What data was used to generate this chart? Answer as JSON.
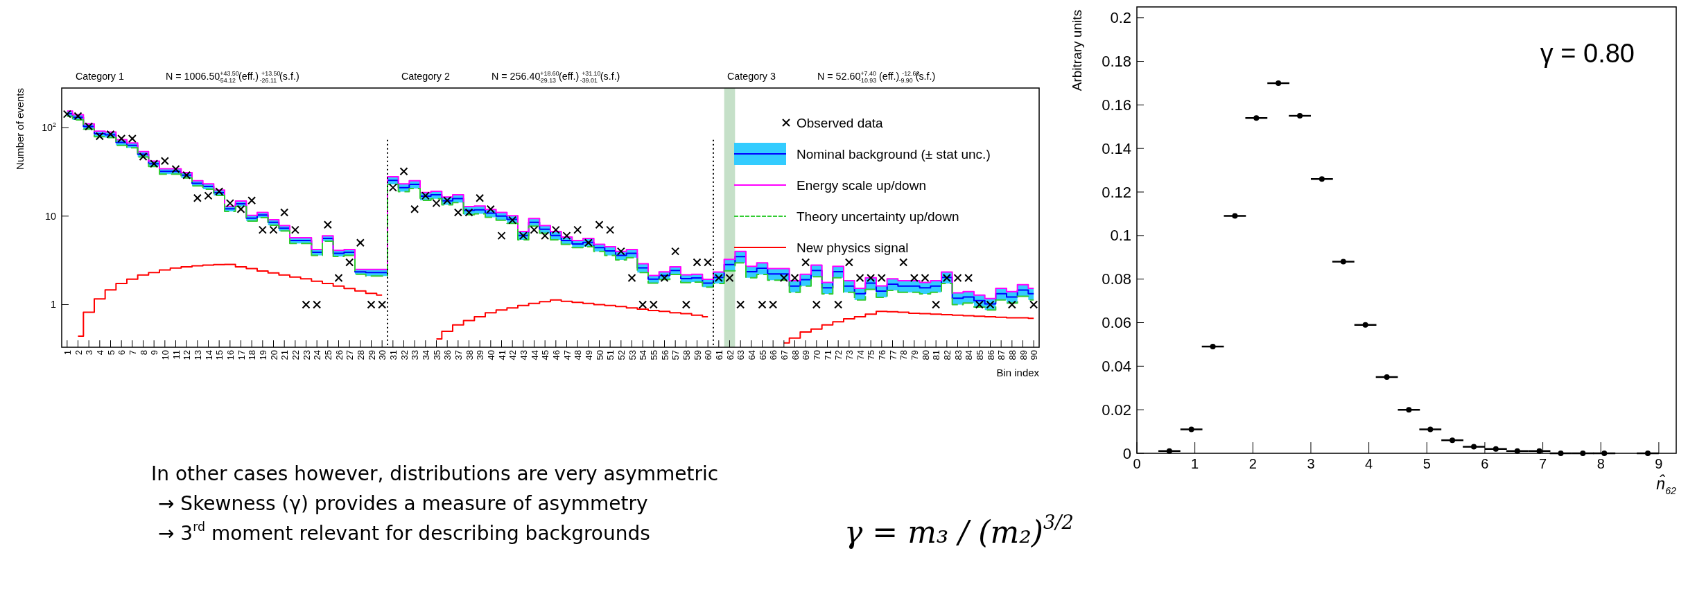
{
  "chart_data": [
    {
      "type": "step",
      "xlabel": "Bin index",
      "ylabel": "Number of events",
      "log": "y",
      "legend": "top right",
      "annotations": [
        "Category 1",
        "N = 1006.50$^{+43.50}$$_{-54.12}$ (eff.) $^{+13.50}$$_{-26.11}$ (s.f.)",
        "Category 2",
        "N = 256.40$^{+18.60}$$_{-29.13}$ (eff.) $^{+31.10}$$_{-39.01}$ (s.f.)",
        "Category 3",
        "N = 52.60$^{+7.40}$$_{-10.93}$ (eff.) $^{-12.60}$$_{-9.90}$ (s.f.)"
      ],
      "x": [
        1,
        2,
        3,
        4,
        5,
        6,
        7,
        8,
        9,
        10,
        11,
        12,
        13,
        14,
        15,
        16,
        17,
        18,
        19,
        20,
        21,
        22,
        23,
        24,
        25,
        26,
        27,
        28,
        29,
        30,
        31,
        32,
        33,
        34,
        35,
        36,
        37,
        38,
        39,
        40,
        41,
        42,
        43,
        44,
        45,
        46,
        47,
        48,
        49,
        50,
        51,
        52,
        53,
        54,
        55,
        56,
        57,
        58,
        59,
        60,
        61,
        62,
        63,
        64,
        65,
        66,
        67,
        68,
        69,
        70,
        71,
        72,
        73,
        74,
        75,
        76,
        77,
        78,
        79,
        80,
        81,
        82,
        83,
        84,
        85,
        86,
        87,
        88,
        89,
        90
      ],
      "xlim": [
        0.5,
        90.5
      ],
      "xticks": [
        1,
        2,
        3,
        4,
        5,
        6,
        7,
        8,
        9,
        10,
        11,
        12,
        13,
        14,
        15,
        16,
        17,
        18,
        19,
        20,
        21,
        22,
        23,
        24,
        25,
        26,
        27,
        28,
        29,
        30,
        31,
        32,
        33,
        34,
        35,
        36,
        37,
        38,
        39,
        40,
        41,
        42,
        43,
        44,
        45,
        46,
        47,
        48,
        49,
        50,
        51,
        52,
        53,
        54,
        55,
        56,
        57,
        58,
        59,
        60,
        61,
        62,
        63,
        64,
        65,
        66,
        67,
        68,
        69,
        70,
        71,
        72,
        73,
        74,
        75,
        76,
        77,
        78,
        79,
        80,
        81,
        82,
        83,
        84,
        85,
        86,
        87,
        88,
        89,
        90
      ],
      "ylim": [
        0.33,
        280
      ],
      "yticks": [
        1,
        10,
        {
          "value": 100,
          "label": "10$^{2}$"
        }
      ],
      "ref_lines": [
        {
          "axis": "x",
          "value": 30.5,
          "color": "#000000",
          "line_style": "dotted"
        },
        {
          "axis": "x",
          "value": 60.5,
          "color": "#000000",
          "line_style": "dotted"
        }
      ],
      "bands": [
        {
          "axis": "x",
          "from": 61.5,
          "to": 62.5,
          "color": "#c5e0c8"
        }
      ],
      "series": [
        {
          "name": "Observed data",
          "type": "scatter",
          "marker": "cross",
          "color": "#000000",
          "values": [
            142,
            135,
            103,
            80,
            84,
            75,
            75,
            47,
            39,
            42,
            34,
            29,
            16,
            17,
            19,
            14,
            12,
            15,
            7,
            7,
            11,
            7,
            1,
            1,
            8,
            2,
            3,
            5,
            1,
            1,
            21,
            32,
            12,
            17,
            14,
            15,
            11,
            11,
            16,
            12,
            6,
            9,
            6,
            7,
            6,
            7,
            6,
            7,
            5,
            8,
            7,
            4,
            2,
            1,
            1,
            2,
            4,
            1,
            3,
            3,
            2,
            2,
            1,
            null,
            1,
            1,
            2,
            2,
            3,
            1,
            null,
            1,
            3,
            2,
            2,
            2,
            null,
            3,
            2,
            2,
            1,
            2,
            2,
            2,
            1,
            1,
            null,
            1,
            null,
            1
          ]
        },
        {
          "name": "Nominal background (± stat unc.)",
          "type": "step",
          "color": "#0000ff",
          "values": [
            144,
            131,
            103,
            85,
            83,
            68,
            63,
            50,
            39,
            32,
            32,
            29,
            23.5,
            21.6,
            18.4,
            12.1,
            13.8,
            9.5,
            10.3,
            8.5,
            7.3,
            5.3,
            5.3,
            3.9,
            5.6,
            3.8,
            3.9,
            2.35,
            2.3,
            2.3,
            25.3,
            21,
            22.8,
            16.8,
            17.4,
            14.9,
            15.8,
            11.6,
            11.8,
            10.8,
            10,
            9.2,
            6.05,
            8.5,
            7.1,
            6.05,
            5.3,
            4.85,
            5.05,
            4.4,
            4.05,
            3.6,
            3.8,
            2.6,
            1.94,
            2.13,
            2.43,
            1.97,
            2,
            1.75,
            2.03,
            2.83,
            3.48,
            2.36,
            2.58,
            2.22,
            2.22,
            1.62,
            1.91,
            2.43,
            1.55,
            2.36,
            1.62,
            1.33,
            1.75,
            1.42,
            1.7,
            1.62,
            1.62,
            1.55,
            1.62,
            2.03,
            1.18,
            1.22,
            1.11,
            1.02,
            1.33,
            1.22,
            1.46,
            1.33
          ],
          "lower": [
            134,
            122,
            96,
            79,
            77,
            63,
            59,
            46.5,
            36.3,
            29.8,
            29.8,
            27,
            21.9,
            20.1,
            17.1,
            11.3,
            12.8,
            8.8,
            9.6,
            7.9,
            6.8,
            4.9,
            4.9,
            3.6,
            5.2,
            3.5,
            3.6,
            2.2,
            2.1,
            2.1,
            22.8,
            18.9,
            20.5,
            15.1,
            15.7,
            13.4,
            14.2,
            10.4,
            10.6,
            9.7,
            9,
            8.3,
            5.4,
            7.7,
            6.4,
            5.4,
            4.8,
            4.4,
            4.5,
            4,
            3.6,
            3.2,
            3.4,
            2.3,
            1.75,
            1.92,
            2.19,
            1.77,
            1.8,
            1.58,
            1.73,
            2.41,
            2.96,
            2.01,
            2.19,
            1.89,
            1.89,
            1.38,
            1.62,
            2.07,
            1.32,
            2.01,
            1.38,
            1.13,
            1.49,
            1.21,
            1.45,
            1.38,
            1.38,
            1.32,
            1.38,
            1.73,
            1,
            1.04,
            0.94,
            0.87,
            1.13,
            1.04,
            1.24,
            1.13
          ],
          "upper": [
            154,
            140,
            110,
            91,
            89,
            73,
            67,
            53.5,
            41.7,
            34.2,
            34.2,
            31,
            25.1,
            23.1,
            19.7,
            12.9,
            14.8,
            10.2,
            11,
            9.1,
            7.8,
            5.7,
            5.7,
            4.2,
            6,
            4.1,
            4.2,
            2.5,
            2.5,
            2.5,
            27.8,
            23.1,
            25.1,
            18.5,
            19.1,
            16.4,
            17.4,
            12.8,
            13,
            11.9,
            11,
            10.1,
            6.7,
            9.4,
            7.8,
            6.7,
            5.8,
            5.3,
            5.6,
            4.8,
            4.5,
            4,
            4.2,
            2.9,
            2.13,
            2.34,
            2.67,
            2.17,
            2.2,
            1.93,
            2.33,
            3.25,
            4,
            2.71,
            2.97,
            2.55,
            2.55,
            1.86,
            2.2,
            2.79,
            1.78,
            2.71,
            1.86,
            1.53,
            2.01,
            1.63,
            1.96,
            1.86,
            1.86,
            1.78,
            1.86,
            2.33,
            1.36,
            1.4,
            1.28,
            1.17,
            1.53,
            1.4,
            1.68,
            1.53
          ]
        },
        {
          "name": "Energy scale up/down",
          "type": "step",
          "color": "#ff00ff",
          "values": [
            154,
            140,
            110,
            91,
            89,
            73,
            67,
            53.5,
            41.7,
            34.2,
            34.2,
            31,
            25.1,
            23.1,
            19.7,
            12.9,
            14.8,
            10.2,
            11,
            9.1,
            7.8,
            5.7,
            5.7,
            4.2,
            6,
            4.1,
            4.2,
            2.5,
            2.5,
            2.5,
            27.8,
            23.1,
            25.1,
            18.5,
            19.1,
            16.4,
            17.4,
            12.8,
            13,
            11.9,
            11,
            10.1,
            6.7,
            9.4,
            7.8,
            6.7,
            5.8,
            5.3,
            5.6,
            4.8,
            4.5,
            4,
            4.2,
            2.9,
            2.13,
            2.34,
            2.67,
            2.17,
            2.2,
            1.93,
            2.33,
            3.25,
            4,
            2.71,
            2.97,
            2.55,
            2.55,
            1.86,
            2.2,
            2.79,
            1.78,
            2.71,
            1.86,
            1.53,
            2.01,
            1.63,
            1.96,
            1.86,
            1.86,
            1.78,
            1.86,
            2.33,
            1.36,
            1.4,
            1.28,
            1.17,
            1.53,
            1.4,
            1.68,
            1.53
          ]
        },
        {
          "name": "Theory uncertainty up/down",
          "type": "step",
          "color": "#33cc33",
          "line_style": "dashed",
          "values": [
            134,
            122,
            96,
            79,
            77,
            63,
            59,
            46.5,
            36.3,
            29.8,
            29.8,
            27,
            21.9,
            20.1,
            17.1,
            11.3,
            12.8,
            8.8,
            9.6,
            7.9,
            6.8,
            4.9,
            4.9,
            3.6,
            5.2,
            3.5,
            3.6,
            2.2,
            2.1,
            2.1,
            22.8,
            18.9,
            20.5,
            15.1,
            15.7,
            13.4,
            14.2,
            10.4,
            10.6,
            9.7,
            9,
            8.3,
            5.4,
            7.7,
            6.4,
            5.4,
            4.8,
            4.4,
            4.5,
            4,
            3.6,
            3.2,
            3.4,
            2.3,
            1.75,
            1.92,
            2.19,
            1.77,
            1.8,
            1.58,
            1.73,
            2.41,
            2.96,
            2.01,
            2.19,
            1.89,
            1.89,
            1.38,
            1.62,
            2.07,
            1.32,
            2.01,
            1.38,
            1.13,
            1.49,
            1.21,
            1.45,
            1.38,
            1.38,
            1.32,
            1.38,
            1.73,
            1,
            1.04,
            0.94,
            0.87,
            1.13,
            1.04,
            1.24,
            1.13
          ]
        },
        {
          "name": "New physics signal",
          "type": "step",
          "color": "#ff0000",
          "values": [
            null,
            0.44,
            0.82,
            1.16,
            1.47,
            1.73,
            1.94,
            2.16,
            2.3,
            2.46,
            2.59,
            2.67,
            2.74,
            2.8,
            2.83,
            2.85,
            2.67,
            2.56,
            2.4,
            2.28,
            2.16,
            2.05,
            1.96,
            1.84,
            1.73,
            1.62,
            1.52,
            1.43,
            1.34,
            1.28,
            null,
            null,
            null,
            null,
            0.41,
            0.5,
            0.59,
            0.66,
            0.73,
            0.81,
            0.87,
            0.92,
            0.98,
            1.03,
            1.08,
            1.13,
            1.09,
            1.06,
            1.03,
            1,
            0.98,
            0.95,
            0.92,
            0.89,
            0.86,
            0.84,
            0.81,
            0.79,
            0.76,
            0.73,
            null,
            null,
            null,
            null,
            null,
            null,
            0.37,
            0.42,
            0.49,
            0.53,
            0.59,
            0.64,
            0.69,
            0.73,
            0.78,
            0.84,
            0.83,
            0.82,
            0.8,
            0.79,
            0.78,
            0.77,
            0.76,
            0.75,
            0.74,
            0.73,
            0.72,
            0.71,
            0.71,
            0.7
          ]
        }
      ]
    },
    {
      "type": "scatter",
      "xlabel": "n̂$_{62}$",
      "ylabel": "Arbitrary units",
      "marker": "circle",
      "annotations": [
        "γ = 0.80"
      ],
      "x": [
        0.56,
        0.94,
        1.31,
        1.69,
        2.06,
        2.44,
        2.81,
        3.19,
        3.56,
        3.94,
        4.31,
        4.69,
        5.06,
        5.44,
        5.81,
        6.19,
        6.56,
        6.94,
        7.31,
        7.69,
        8.06,
        8.81
      ],
      "xlim": [
        0,
        9.3
      ],
      "xticks": [
        0,
        1,
        2,
        3,
        4,
        5,
        6,
        7,
        8,
        9
      ],
      "ylim": [
        0,
        0.205
      ],
      "yticks": [
        0,
        0.02,
        0.04,
        0.06,
        0.08,
        0.1,
        0.12,
        0.14,
        0.16,
        0.18,
        0.2
      ],
      "series": [
        {
          "color": "#000000",
          "values": [
            0.001,
            0.011,
            0.049,
            0.109,
            0.154,
            0.17,
            0.155,
            0.126,
            0.088,
            0.059,
            0.035,
            0.02,
            0.011,
            0.006,
            0.003,
            0.002,
            0.001,
            0.001,
            0,
            0,
            0,
            0
          ],
          "xerrors": [
            0.19,
            0.19,
            0.19,
            0.19,
            0.19,
            0.19,
            0.19,
            0.19,
            0.19,
            0.19,
            0.19,
            0.19,
            0.19,
            0.19,
            0.19,
            0.19,
            0.19,
            0.19,
            0.19,
            0.19,
            0.19,
            0.19
          ]
        }
      ]
    },
    {
      "type": "other",
      "annotations": [
        "In other cases however, distributions are very asymmetric",
        "→ Skewness (γ) provides a measure of asymmetry",
        "→ 3$^{rd}$ moment relevant for describing backgrounds",
        "γ = m₃ / (m₂)$^{3/2}$"
      ]
    }
  ]
}
